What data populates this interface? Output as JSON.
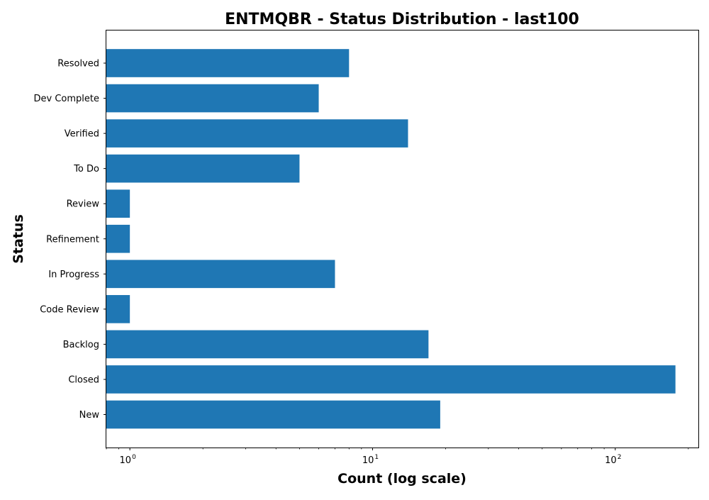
{
  "chart_data": {
    "type": "bar",
    "orientation": "horizontal",
    "title": "ENTMQBR - Status Distribution - last100",
    "xlabel": "Count (log scale)",
    "ylabel": "Status",
    "x_scale": "log",
    "xlim": [
      0.8,
      220
    ],
    "x_major_ticks": [
      {
        "value": 1,
        "base": "10",
        "exp": "0"
      },
      {
        "value": 10,
        "base": "10",
        "exp": "1"
      },
      {
        "value": 100,
        "base": "10",
        "exp": "2"
      }
    ],
    "categories": [
      "New",
      "Closed",
      "Backlog",
      "Code Review",
      "In Progress",
      "Refinement",
      "Review",
      "To Do",
      "Verified",
      "Dev Complete",
      "Resolved"
    ],
    "values": [
      19,
      177,
      17,
      1,
      7,
      1,
      1,
      5,
      14,
      6,
      8
    ],
    "bar_color": "#1f77b4",
    "grid": false,
    "legend": false
  }
}
